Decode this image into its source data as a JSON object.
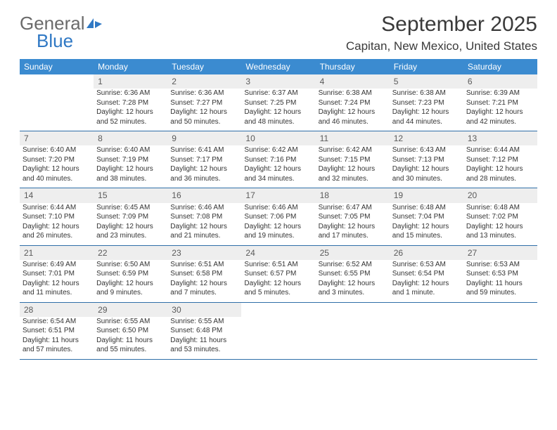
{
  "brand": {
    "name_part1": "General",
    "name_part2": "Blue",
    "color_text": "#6a6a6a",
    "color_blue": "#2f78c4"
  },
  "title": "September 2025",
  "location": "Capitan, New Mexico, United States",
  "colors": {
    "header_bg": "#3b8bd0",
    "header_fg": "#ffffff",
    "daynum_bg": "#eeeeee",
    "row_divider": "#2f6fa8",
    "text": "#333333"
  },
  "weekdays": [
    "Sunday",
    "Monday",
    "Tuesday",
    "Wednesday",
    "Thursday",
    "Friday",
    "Saturday"
  ],
  "weeks": [
    [
      {
        "day": "",
        "lines": []
      },
      {
        "day": "1",
        "lines": [
          "Sunrise: 6:36 AM",
          "Sunset: 7:28 PM",
          "Daylight: 12 hours",
          "and 52 minutes."
        ]
      },
      {
        "day": "2",
        "lines": [
          "Sunrise: 6:36 AM",
          "Sunset: 7:27 PM",
          "Daylight: 12 hours",
          "and 50 minutes."
        ]
      },
      {
        "day": "3",
        "lines": [
          "Sunrise: 6:37 AM",
          "Sunset: 7:25 PM",
          "Daylight: 12 hours",
          "and 48 minutes."
        ]
      },
      {
        "day": "4",
        "lines": [
          "Sunrise: 6:38 AM",
          "Sunset: 7:24 PM",
          "Daylight: 12 hours",
          "and 46 minutes."
        ]
      },
      {
        "day": "5",
        "lines": [
          "Sunrise: 6:38 AM",
          "Sunset: 7:23 PM",
          "Daylight: 12 hours",
          "and 44 minutes."
        ]
      },
      {
        "day": "6",
        "lines": [
          "Sunrise: 6:39 AM",
          "Sunset: 7:21 PM",
          "Daylight: 12 hours",
          "and 42 minutes."
        ]
      }
    ],
    [
      {
        "day": "7",
        "lines": [
          "Sunrise: 6:40 AM",
          "Sunset: 7:20 PM",
          "Daylight: 12 hours",
          "and 40 minutes."
        ]
      },
      {
        "day": "8",
        "lines": [
          "Sunrise: 6:40 AM",
          "Sunset: 7:19 PM",
          "Daylight: 12 hours",
          "and 38 minutes."
        ]
      },
      {
        "day": "9",
        "lines": [
          "Sunrise: 6:41 AM",
          "Sunset: 7:17 PM",
          "Daylight: 12 hours",
          "and 36 minutes."
        ]
      },
      {
        "day": "10",
        "lines": [
          "Sunrise: 6:42 AM",
          "Sunset: 7:16 PM",
          "Daylight: 12 hours",
          "and 34 minutes."
        ]
      },
      {
        "day": "11",
        "lines": [
          "Sunrise: 6:42 AM",
          "Sunset: 7:15 PM",
          "Daylight: 12 hours",
          "and 32 minutes."
        ]
      },
      {
        "day": "12",
        "lines": [
          "Sunrise: 6:43 AM",
          "Sunset: 7:13 PM",
          "Daylight: 12 hours",
          "and 30 minutes."
        ]
      },
      {
        "day": "13",
        "lines": [
          "Sunrise: 6:44 AM",
          "Sunset: 7:12 PM",
          "Daylight: 12 hours",
          "and 28 minutes."
        ]
      }
    ],
    [
      {
        "day": "14",
        "lines": [
          "Sunrise: 6:44 AM",
          "Sunset: 7:10 PM",
          "Daylight: 12 hours",
          "and 26 minutes."
        ]
      },
      {
        "day": "15",
        "lines": [
          "Sunrise: 6:45 AM",
          "Sunset: 7:09 PM",
          "Daylight: 12 hours",
          "and 23 minutes."
        ]
      },
      {
        "day": "16",
        "lines": [
          "Sunrise: 6:46 AM",
          "Sunset: 7:08 PM",
          "Daylight: 12 hours",
          "and 21 minutes."
        ]
      },
      {
        "day": "17",
        "lines": [
          "Sunrise: 6:46 AM",
          "Sunset: 7:06 PM",
          "Daylight: 12 hours",
          "and 19 minutes."
        ]
      },
      {
        "day": "18",
        "lines": [
          "Sunrise: 6:47 AM",
          "Sunset: 7:05 PM",
          "Daylight: 12 hours",
          "and 17 minutes."
        ]
      },
      {
        "day": "19",
        "lines": [
          "Sunrise: 6:48 AM",
          "Sunset: 7:04 PM",
          "Daylight: 12 hours",
          "and 15 minutes."
        ]
      },
      {
        "day": "20",
        "lines": [
          "Sunrise: 6:48 AM",
          "Sunset: 7:02 PM",
          "Daylight: 12 hours",
          "and 13 minutes."
        ]
      }
    ],
    [
      {
        "day": "21",
        "lines": [
          "Sunrise: 6:49 AM",
          "Sunset: 7:01 PM",
          "Daylight: 12 hours",
          "and 11 minutes."
        ]
      },
      {
        "day": "22",
        "lines": [
          "Sunrise: 6:50 AM",
          "Sunset: 6:59 PM",
          "Daylight: 12 hours",
          "and 9 minutes."
        ]
      },
      {
        "day": "23",
        "lines": [
          "Sunrise: 6:51 AM",
          "Sunset: 6:58 PM",
          "Daylight: 12 hours",
          "and 7 minutes."
        ]
      },
      {
        "day": "24",
        "lines": [
          "Sunrise: 6:51 AM",
          "Sunset: 6:57 PM",
          "Daylight: 12 hours",
          "and 5 minutes."
        ]
      },
      {
        "day": "25",
        "lines": [
          "Sunrise: 6:52 AM",
          "Sunset: 6:55 PM",
          "Daylight: 12 hours",
          "and 3 minutes."
        ]
      },
      {
        "day": "26",
        "lines": [
          "Sunrise: 6:53 AM",
          "Sunset: 6:54 PM",
          "Daylight: 12 hours",
          "and 1 minute."
        ]
      },
      {
        "day": "27",
        "lines": [
          "Sunrise: 6:53 AM",
          "Sunset: 6:53 PM",
          "Daylight: 11 hours",
          "and 59 minutes."
        ]
      }
    ],
    [
      {
        "day": "28",
        "lines": [
          "Sunrise: 6:54 AM",
          "Sunset: 6:51 PM",
          "Daylight: 11 hours",
          "and 57 minutes."
        ]
      },
      {
        "day": "29",
        "lines": [
          "Sunrise: 6:55 AM",
          "Sunset: 6:50 PM",
          "Daylight: 11 hours",
          "and 55 minutes."
        ]
      },
      {
        "day": "30",
        "lines": [
          "Sunrise: 6:55 AM",
          "Sunset: 6:48 PM",
          "Daylight: 11 hours",
          "and 53 minutes."
        ]
      },
      {
        "day": "",
        "lines": []
      },
      {
        "day": "",
        "lines": []
      },
      {
        "day": "",
        "lines": []
      },
      {
        "day": "",
        "lines": []
      }
    ]
  ]
}
